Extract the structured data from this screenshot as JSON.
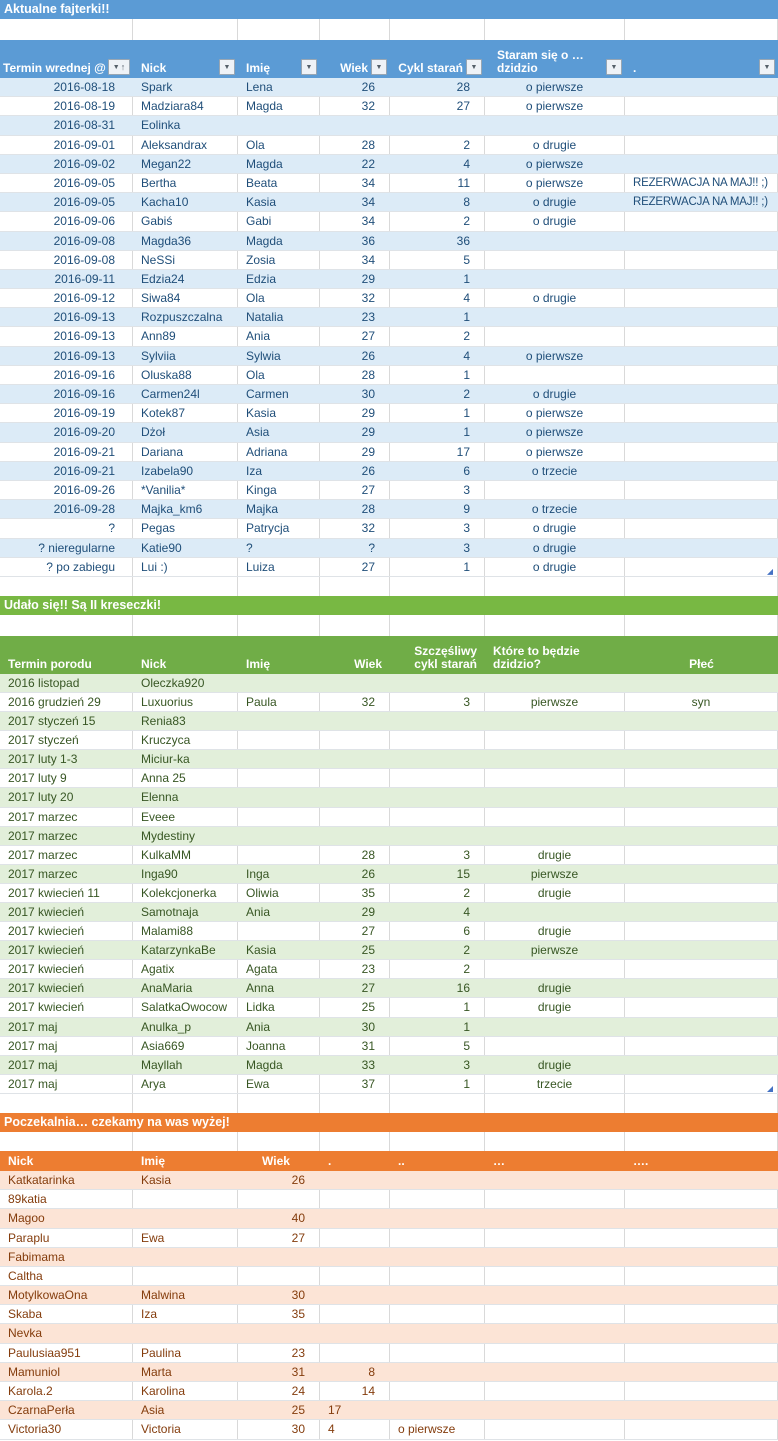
{
  "colors": {
    "blue": "#5b9bd5",
    "blueBand": "#dcebf7",
    "blueText": "#1f4e79",
    "green": "#70ad47",
    "greenTitle": "#78b843",
    "greenBand": "#e2efda",
    "greenText": "#375623",
    "orange": "#ed7d31",
    "orangeBand": "#fce4d6",
    "orangeText": "#843c0c"
  },
  "tables": [
    {
      "id": "blue",
      "title": "Aktualne fajterki!!",
      "columns": [
        {
          "label": "Termin wrednej @",
          "button": "sort"
        },
        {
          "label": "Nick",
          "button": "filter"
        },
        {
          "label": "Imię",
          "button": "filter"
        },
        {
          "label": "Wiek",
          "button": "filter"
        },
        {
          "label": "Cykl starań",
          "button": "filter"
        },
        {
          "label": "Staram się o …\ndzidzio",
          "button": "filter"
        },
        {
          "label": ".",
          "button": "filter"
        }
      ],
      "header_align": [
        "left",
        "left",
        "left",
        "right",
        "right",
        "left",
        "left"
      ],
      "align": [
        "right",
        "left",
        "left",
        "right",
        "right",
        "center",
        "left"
      ],
      "rows": [
        [
          "2016-08-18",
          "Spark",
          "Lena",
          "26",
          "28",
          "o pierwsze",
          ""
        ],
        [
          "2016-08-19",
          "Madziara84",
          "Magda",
          "32",
          "27",
          "o pierwsze",
          ""
        ],
        [
          "2016-08-31",
          "Eolinka",
          "",
          "",
          "",
          "",
          ""
        ],
        [
          "2016-09-01",
          "Aleksandrax",
          "Ola",
          "28",
          "2",
          "o drugie",
          ""
        ],
        [
          "2016-09-02",
          "Megan22",
          "Magda",
          "22",
          "4",
          "o pierwsze",
          ""
        ],
        [
          "2016-09-05",
          "Bertha",
          "Beata",
          "34",
          "11",
          "o pierwsze",
          "REZERWACJA NA MAJ!! ;)"
        ],
        [
          "2016-09-05",
          "Kacha10",
          "Kasia",
          "34",
          "8",
          "o drugie",
          "REZERWACJA NA MAJ!! ;)"
        ],
        [
          "2016-09-06",
          "Gabiś",
          "Gabi",
          "34",
          "2",
          "o drugie",
          ""
        ],
        [
          "2016-09-08",
          "Magda36",
          "Magda",
          "36",
          "36",
          "",
          ""
        ],
        [
          "2016-09-08",
          "NeSSi",
          "Zosia",
          "34",
          "5",
          "",
          ""
        ],
        [
          "2016-09-11",
          "Edzia24",
          "Edzia",
          "29",
          "1",
          "",
          ""
        ],
        [
          "2016-09-12",
          "Siwa84",
          "Ola",
          "32",
          "4",
          "o drugie",
          ""
        ],
        [
          "2016-09-13",
          "Rozpuszczalna",
          "Natalia",
          "23",
          "1",
          "",
          ""
        ],
        [
          "2016-09-13",
          "Ann89",
          "Ania",
          "27",
          "2",
          "",
          ""
        ],
        [
          "2016-09-13",
          "Sylviia",
          "Sylwia",
          "26",
          "4",
          "o pierwsze",
          ""
        ],
        [
          "2016-09-16",
          "Oluska88",
          "Ola",
          "28",
          "1",
          "",
          ""
        ],
        [
          "2016-09-16",
          "Carmen24l",
          "Carmen",
          "30",
          "2",
          "o drugie",
          ""
        ],
        [
          "2016-09-19",
          "Kotek87",
          "Kasia",
          "29",
          "1",
          "o pierwsze",
          ""
        ],
        [
          "2016-09-20",
          "Dżoł",
          "Asia",
          "29",
          "1",
          "o pierwsze",
          ""
        ],
        [
          "2016-09-21",
          "Dariana",
          "Adriana",
          "29",
          "17",
          "o pierwsze",
          ""
        ],
        [
          "2016-09-21",
          "Izabela90",
          "Iza",
          "26",
          "6",
          "o trzecie",
          ""
        ],
        [
          "2016-09-26",
          "*Vanilia*",
          "Kinga",
          "27",
          "3",
          "",
          ""
        ],
        [
          "2016-09-28",
          "Majka_km6",
          "Majka",
          "28",
          "9",
          "o trzecie",
          ""
        ],
        [
          "?",
          "Pegas",
          "Patrycja",
          "32",
          "3",
          "o drugie",
          ""
        ],
        [
          "? nieregularne",
          "Katie90",
          "?",
          "?",
          "3",
          "o drugie",
          ""
        ],
        [
          "? po zabiegu",
          "Lui :)",
          "Luiza",
          "27",
          "1",
          "o drugie",
          ""
        ]
      ]
    },
    {
      "id": "green",
      "title": "Udało się!! Są II kreseczki!",
      "columns": [
        {
          "label": "Termin porodu"
        },
        {
          "label": "Nick"
        },
        {
          "label": "Imię"
        },
        {
          "label": "Wiek"
        },
        {
          "label": "Szczęśliwy\ncykl starań"
        },
        {
          "label": "Które to będzie\ndzidzio?"
        },
        {
          "label": "Płeć"
        }
      ],
      "header_align": [
        "left",
        "left",
        "left",
        "right",
        "right",
        "left",
        "center"
      ],
      "align": [
        "left",
        "left",
        "left",
        "right",
        "right",
        "center",
        "center"
      ],
      "rows": [
        [
          "2016 listopad",
          "Oleczka920",
          "",
          "",
          "",
          "",
          ""
        ],
        [
          "2016 grudzień 29",
          "Luxuorius",
          "Paula",
          "32",
          "3",
          "pierwsze",
          "syn"
        ],
        [
          "2017 styczeń 15",
          "Renia83",
          "",
          "",
          "",
          "",
          ""
        ],
        [
          "2017 styczeń",
          "Kruczyca",
          "",
          "",
          "",
          "",
          ""
        ],
        [
          "2017 luty 1-3",
          "Miciur-ka",
          "",
          "",
          "",
          "",
          ""
        ],
        [
          "2017 luty 9",
          "Anna 25",
          "",
          "",
          "",
          "",
          ""
        ],
        [
          "2017 luty 20",
          "Elenna",
          "",
          "",
          "",
          "",
          ""
        ],
        [
          "2017 marzec",
          "Eveee",
          "",
          "",
          "",
          "",
          ""
        ],
        [
          "2017 marzec",
          "Mydestiny",
          "",
          "",
          "",
          "",
          ""
        ],
        [
          "2017 marzec",
          "KulkaMM",
          "",
          "28",
          "3",
          "drugie",
          ""
        ],
        [
          "2017 marzec",
          "Inga90",
          "Inga",
          "26",
          "15",
          "pierwsze",
          ""
        ],
        [
          "2017 kwiecień 11",
          "Kolekcjonerka",
          "Oliwia",
          "35",
          "2",
          "drugie",
          ""
        ],
        [
          "2017 kwiecień",
          "Samotnaja",
          "Ania",
          "29",
          "4",
          "",
          ""
        ],
        [
          "2017 kwiecień",
          "Malami88",
          "",
          "27",
          "6",
          "drugie",
          ""
        ],
        [
          "2017 kwiecień",
          "KatarzynkaBe",
          "Kasia",
          "25",
          "2",
          "pierwsze",
          ""
        ],
        [
          "2017 kwiecień",
          "Agatix",
          "Agata",
          "23",
          "2",
          "",
          ""
        ],
        [
          "2017 kwiecień",
          "AnaMaria",
          "Anna",
          "27",
          "16",
          "drugie",
          ""
        ],
        [
          "2017 kwiecień",
          "SalatkaOwocow",
          "Lidka",
          "25",
          "1",
          "drugie",
          ""
        ],
        [
          "2017 maj",
          "Anulka_p",
          "Ania",
          "30",
          "1",
          "",
          ""
        ],
        [
          "2017 maj",
          "Asia669",
          "Joanna",
          "31",
          "5",
          "",
          ""
        ],
        [
          "2017 maj",
          "Mayllah",
          "Magda",
          "33",
          "3",
          "drugie",
          ""
        ],
        [
          "2017 maj",
          "Arya",
          "Ewa",
          "37",
          "1",
          "trzecie",
          ""
        ]
      ]
    },
    {
      "id": "orange",
      "title": "Poczekalnia… czekamy na was wyżej!",
      "columns": [
        {
          "label": "Nick"
        },
        {
          "label": "Imię"
        },
        {
          "label": "Wiek"
        },
        {
          "label": "."
        },
        {
          "label": ".."
        },
        {
          "label": "…"
        },
        {
          "label": "…."
        }
      ],
      "header_align": [
        "left",
        "left",
        "center",
        "left",
        "left",
        "left",
        "left"
      ],
      "align": [
        "left",
        "left",
        "right",
        "right",
        "left",
        "left",
        "left"
      ],
      "cell_align": {
        "12,3": "left",
        "13,3": "left"
      },
      "rows": [
        [
          "Katkatarinka",
          "Kasia",
          "26",
          "",
          "",
          "",
          ""
        ],
        [
          "89katia",
          "",
          "",
          "",
          "",
          "",
          ""
        ],
        [
          "Magoo",
          "",
          "40",
          "",
          "",
          "",
          ""
        ],
        [
          "Paraplu",
          "Ewa",
          "27",
          "",
          "",
          "",
          ""
        ],
        [
          "Fabimama",
          "",
          "",
          "",
          "",
          "",
          ""
        ],
        [
          "Caltha",
          "",
          "",
          "",
          "",
          "",
          ""
        ],
        [
          "MotylkowaOna",
          "Malwina",
          "30",
          "",
          "",
          "",
          ""
        ],
        [
          "Skaba",
          "Iza",
          "35",
          "",
          "",
          "",
          ""
        ],
        [
          "Nevka",
          "",
          "",
          "",
          "",
          "",
          ""
        ],
        [
          "Paulusiaa951",
          "Paulina",
          "23",
          "",
          "",
          "",
          ""
        ],
        [
          "Mamuniol",
          "Marta",
          "31",
          "8",
          "",
          "",
          ""
        ],
        [
          "Karola.2",
          "Karolina",
          "24",
          "14",
          "",
          "",
          ""
        ],
        [
          "CzarnaPerła",
          "Asia",
          "25",
          "17",
          "",
          "",
          ""
        ],
        [
          "Victoria30",
          "Victoria",
          "30",
          "4",
          "o pierwsze",
          "",
          ""
        ]
      ]
    }
  ],
  "filter_button_glyph": "▼",
  "sort_indicator": "↑"
}
